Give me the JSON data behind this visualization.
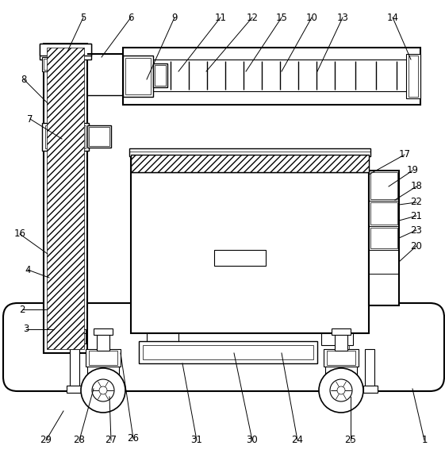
{
  "fig_width": 5.61,
  "fig_height": 5.76,
  "dpi": 100,
  "bg_color": "#ffffff",
  "line_color": "#000000"
}
